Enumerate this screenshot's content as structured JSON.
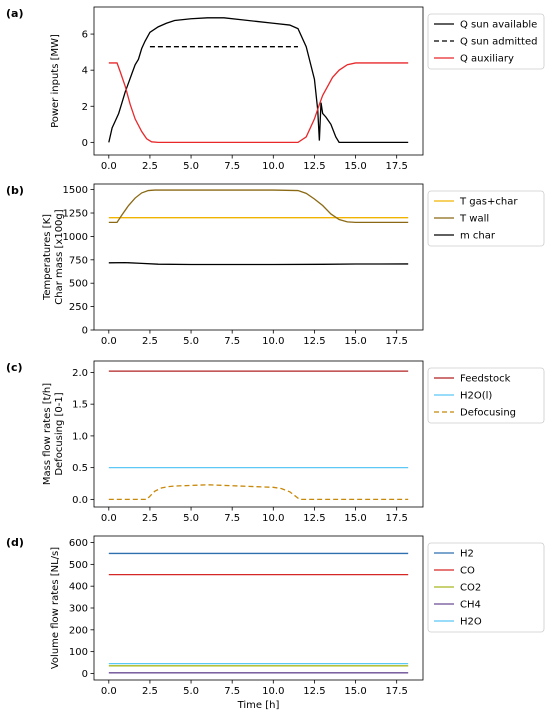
{
  "chart_data": [
    {
      "type": "line",
      "panel_tag": "(a)",
      "ylabel": [
        "Power inputs [MW]"
      ],
      "xlabel": "",
      "xlim": [
        -0.9,
        19.1
      ],
      "ylim": [
        -0.7,
        7.5
      ],
      "xticks": [
        0.0,
        2.5,
        5.0,
        7.5,
        10.0,
        12.5,
        15.0,
        17.5
      ],
      "xtick_labels": [
        "0.0",
        "2.5",
        "5.0",
        "7.5",
        "10.0",
        "12.5",
        "15.0",
        "17.5"
      ],
      "yticks": [
        0,
        2,
        4,
        6
      ],
      "ytick_labels": [
        "0",
        "2",
        "4",
        "6"
      ],
      "legend": "outside-right",
      "series": [
        {
          "name": "Q sun available",
          "color": "#000000",
          "dash": "solid",
          "x": [
            0.0,
            0.2,
            0.4,
            0.6,
            0.8,
            1.0,
            1.2,
            1.4,
            1.6,
            1.8,
            2.0,
            2.2,
            2.5,
            3.0,
            3.5,
            4.0,
            5.0,
            6.0,
            7.0,
            8.0,
            9.0,
            10.0,
            11.0,
            11.5,
            12.0,
            12.5,
            12.7,
            12.8,
            12.9,
            13.0,
            13.2,
            13.5,
            13.8,
            14.0,
            15.0,
            16.0,
            17.0,
            18.2
          ],
          "y": [
            0.0,
            0.8,
            1.2,
            1.6,
            2.2,
            2.8,
            3.3,
            3.8,
            4.3,
            4.6,
            5.2,
            5.6,
            6.1,
            6.4,
            6.6,
            6.75,
            6.85,
            6.9,
            6.9,
            6.8,
            6.7,
            6.6,
            6.5,
            6.3,
            5.3,
            3.5,
            1.8,
            0.1,
            2.2,
            1.6,
            1.4,
            1.0,
            0.3,
            0.0,
            0.0,
            0.0,
            0.0,
            0.0
          ]
        },
        {
          "name": "Q sun admitted",
          "color": "#000000",
          "dash": "dashed",
          "x": [
            2.5,
            4.0,
            6.0,
            8.0,
            10.0,
            11.5
          ],
          "y": [
            5.3,
            5.3,
            5.3,
            5.3,
            5.3,
            5.3
          ]
        },
        {
          "name": "Q auxiliary",
          "color": "#e8282b",
          "dash": "solid",
          "x": [
            0.0,
            0.5,
            0.7,
            1.0,
            1.3,
            1.6,
            2.0,
            2.3,
            2.6,
            3.0,
            5.0,
            7.5,
            10.0,
            11.5,
            12.0,
            12.5,
            12.8,
            13.0,
            13.3,
            13.6,
            14.0,
            14.5,
            15.0,
            16.0,
            17.0,
            18.2
          ],
          "y": [
            4.4,
            4.4,
            3.9,
            3.1,
            2.1,
            1.3,
            0.6,
            0.2,
            0.03,
            0.0,
            0.0,
            0.0,
            0.0,
            0.0,
            0.3,
            1.3,
            2.1,
            2.6,
            3.1,
            3.6,
            4.0,
            4.3,
            4.4,
            4.4,
            4.4,
            4.4
          ]
        }
      ]
    },
    {
      "type": "line",
      "panel_tag": "(b)",
      "ylabel": [
        "Temperatures [K]",
        "Char mass [x100g]"
      ],
      "xlabel": "",
      "xlim": [
        -0.9,
        19.1
      ],
      "ylim": [
        0,
        1560
      ],
      "xticks": [
        0.0,
        2.5,
        5.0,
        7.5,
        10.0,
        12.5,
        15.0,
        17.5
      ],
      "xtick_labels": [
        "0.0",
        "2.5",
        "5.0",
        "7.5",
        "10.0",
        "12.5",
        "15.0",
        "17.5"
      ],
      "yticks": [
        0,
        250,
        500,
        750,
        1000,
        1250,
        1500
      ],
      "ytick_labels": [
        "0",
        "250",
        "500",
        "750",
        "1000",
        "1250",
        "1500"
      ],
      "legend": "outside-right",
      "series": [
        {
          "name": "T gas+char",
          "color": "#f0b400",
          "dash": "solid",
          "x": [
            0.0,
            18.2
          ],
          "y": [
            1200,
            1200
          ]
        },
        {
          "name": "T wall",
          "color": "#8b6914",
          "dash": "solid",
          "x": [
            0.0,
            0.5,
            0.8,
            1.2,
            1.6,
            2.0,
            2.4,
            2.8,
            5.0,
            7.5,
            10.0,
            11.5,
            12.0,
            12.5,
            13.0,
            13.5,
            14.0,
            14.5,
            15.0,
            16.0,
            18.2
          ],
          "y": [
            1150,
            1150,
            1230,
            1330,
            1410,
            1465,
            1490,
            1495,
            1495,
            1495,
            1495,
            1490,
            1460,
            1400,
            1330,
            1240,
            1180,
            1155,
            1150,
            1150,
            1150
          ]
        },
        {
          "name": "m char",
          "color": "#000000",
          "dash": "solid",
          "x": [
            0.0,
            1.0,
            2.0,
            3.0,
            5.0,
            10.0,
            13.0,
            15.0,
            18.2
          ],
          "y": [
            718,
            720,
            712,
            703,
            700,
            700,
            702,
            705,
            706
          ]
        }
      ]
    },
    {
      "type": "line",
      "panel_tag": "(c)",
      "ylabel": [
        "Mass flow rates [t/h]",
        "Defocusing [0-1]"
      ],
      "xlabel": "",
      "xlim": [
        -0.9,
        19.1
      ],
      "ylim": [
        -0.12,
        2.18
      ],
      "xticks": [
        0.0,
        2.5,
        5.0,
        7.5,
        10.0,
        12.5,
        15.0,
        17.5
      ],
      "xtick_labels": [
        "0.0",
        "2.5",
        "5.0",
        "7.5",
        "10.0",
        "12.5",
        "15.0",
        "17.5"
      ],
      "yticks": [
        0.0,
        0.5,
        1.0,
        1.5,
        2.0
      ],
      "ytick_labels": [
        "0.0",
        "0.5",
        "1.0",
        "1.5",
        "2.0"
      ],
      "legend": "outside-right",
      "series": [
        {
          "name": "Feedstock",
          "color": "#b22222",
          "dash": "solid",
          "x": [
            0.0,
            18.2
          ],
          "y": [
            2.02,
            2.02
          ]
        },
        {
          "name": "H2O(l)",
          "color": "#5bc8f5",
          "dash": "solid",
          "x": [
            0.0,
            18.2
          ],
          "y": [
            0.5,
            0.5
          ]
        },
        {
          "name": "Defocusing",
          "color": "#c8880a",
          "dash": "dashed",
          "x": [
            0.0,
            2.3,
            2.5,
            2.8,
            3.2,
            3.6,
            4.0,
            5.0,
            6.0,
            7.0,
            8.0,
            9.0,
            10.0,
            10.5,
            11.0,
            11.3,
            11.6,
            12.0,
            15.0,
            18.2
          ],
          "y": [
            0.0,
            0.0,
            0.05,
            0.13,
            0.18,
            0.2,
            0.21,
            0.22,
            0.23,
            0.22,
            0.21,
            0.2,
            0.19,
            0.17,
            0.12,
            0.06,
            0.0,
            0.0,
            0.0,
            0.0
          ]
        }
      ]
    },
    {
      "type": "line",
      "panel_tag": "(d)",
      "ylabel": [
        "Volume flow rates [NL/s]"
      ],
      "xlabel": "Time [h]",
      "xlim": [
        -0.9,
        19.1
      ],
      "ylim": [
        -30,
        630
      ],
      "xticks": [
        0.0,
        2.5,
        5.0,
        7.5,
        10.0,
        12.5,
        15.0,
        17.5
      ],
      "xtick_labels": [
        "0.0",
        "2.5",
        "5.0",
        "7.5",
        "10.0",
        "12.5",
        "15.0",
        "17.5"
      ],
      "yticks": [
        0,
        100,
        200,
        300,
        400,
        500,
        600
      ],
      "ytick_labels": [
        "0",
        "100",
        "200",
        "300",
        "400",
        "500",
        "600"
      ],
      "legend": "outside-right",
      "series": [
        {
          "name": "H2",
          "color": "#2e6fb0",
          "dash": "solid",
          "x": [
            0.0,
            18.2
          ],
          "y": [
            550,
            550
          ]
        },
        {
          "name": "CO",
          "color": "#d62728",
          "dash": "solid",
          "x": [
            0.0,
            18.2
          ],
          "y": [
            453,
            453
          ]
        },
        {
          "name": "CO2",
          "color": "#a8b820",
          "dash": "solid",
          "x": [
            0.0,
            18.2
          ],
          "y": [
            35,
            35
          ]
        },
        {
          "name": "CH4",
          "color": "#6a4c93",
          "dash": "solid",
          "x": [
            0.0,
            18.2
          ],
          "y": [
            3,
            3
          ]
        },
        {
          "name": "H2O",
          "color": "#5bc8f5",
          "dash": "solid",
          "x": [
            0.0,
            18.2
          ],
          "y": [
            45,
            45
          ]
        }
      ]
    }
  ]
}
